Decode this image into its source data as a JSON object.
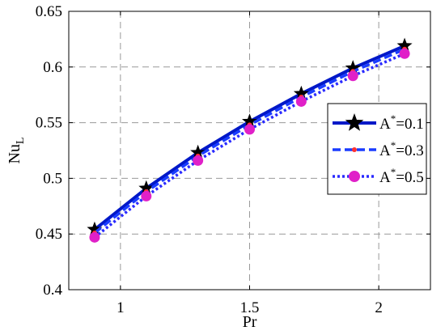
{
  "chart_data": {
    "type": "line",
    "title": "",
    "xlabel": "Pr",
    "ylabel": "Nu",
    "ylabel_sub": "L",
    "xlim": [
      0.8,
      2.2
    ],
    "ylim": [
      0.4,
      0.65
    ],
    "x_ticks": [
      1,
      1.5,
      2
    ],
    "x_tick_labels": [
      "1",
      "1.5",
      "2"
    ],
    "y_ticks": [
      0.4,
      0.45,
      0.5,
      0.55,
      0.6,
      0.65
    ],
    "y_tick_labels": [
      "0.4",
      "0.45",
      "0.5",
      "0.55",
      "0.6",
      "0.65"
    ],
    "grid": true,
    "legend_position": "right",
    "x": [
      0.9,
      1.1,
      1.3,
      1.5,
      1.7,
      1.9,
      2.1
    ],
    "series": [
      {
        "name": "A*=0.1",
        "label_base": "A",
        "label_sup": "*",
        "label_rest": "=0.1",
        "color": "#0018c8",
        "line_style": "solid",
        "marker": "star",
        "marker_color": "#000000",
        "values": [
          0.454,
          0.491,
          0.523,
          0.551,
          0.576,
          0.599,
          0.619
        ]
      },
      {
        "name": "A*=0.3",
        "label_base": "A",
        "label_sup": "*",
        "label_rest": "=0.3",
        "color": "#1a3cff",
        "line_style": "dashed",
        "marker": "dot",
        "marker_color": "#ff3030",
        "values": [
          0.451,
          0.488,
          0.52,
          0.548,
          0.573,
          0.596,
          0.616
        ]
      },
      {
        "name": "A*=0.5",
        "label_base": "A",
        "label_sup": "*",
        "label_rest": "=0.5",
        "color": "#2a2aff",
        "line_style": "dotted",
        "marker": "circle",
        "marker_color": "#e020c8",
        "values": [
          0.447,
          0.484,
          0.516,
          0.544,
          0.569,
          0.592,
          0.612
        ]
      }
    ]
  }
}
